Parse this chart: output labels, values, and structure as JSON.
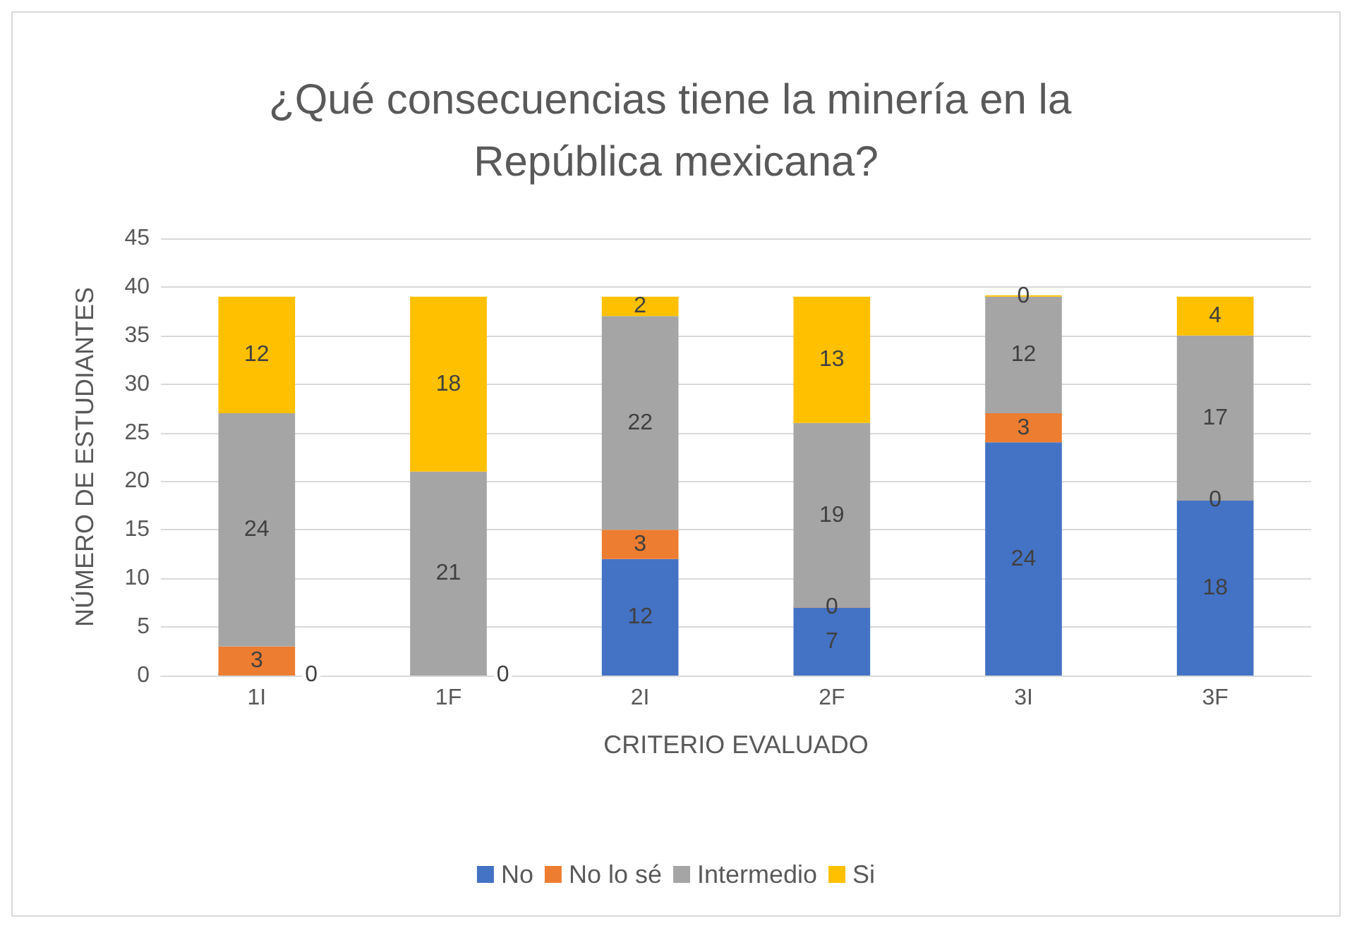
{
  "chart_data": {
    "type": "bar",
    "title": "¿Qué consecuencias tiene la minería en la República mexicana?",
    "xlabel": "CRITERIO EVALUADO",
    "ylabel": "NÚMERO DE ESTUDIANTES",
    "categories": [
      "1I",
      "1F",
      "2I",
      "2F",
      "3I",
      "3F"
    ],
    "series": [
      {
        "name": "No",
        "color": "#4472c4",
        "values": [
          0,
          0,
          12,
          7,
          24,
          18
        ],
        "value_labels": [
          "0",
          "0",
          "12",
          "7",
          "24",
          "18"
        ]
      },
      {
        "name": "No lo sé",
        "color": "#ed7d31",
        "values": [
          3,
          0,
          3,
          0,
          3,
          0
        ],
        "value_labels": [
          "3",
          null,
          "3",
          "0",
          "3",
          "0"
        ]
      },
      {
        "name": "Intermedio",
        "color": "#a5a5a5",
        "values": [
          24,
          21,
          22,
          19,
          12,
          17
        ],
        "value_labels": [
          "24",
          "21",
          "22",
          "19",
          "12",
          "17"
        ]
      },
      {
        "name": "Si",
        "color": "#ffc000",
        "values": [
          12,
          18,
          2,
          13,
          0,
          4
        ],
        "value_labels": [
          "12",
          "18",
          "2",
          "13",
          "0",
          "4"
        ]
      }
    ],
    "stacked": true,
    "ylim": [
      0,
      45
    ],
    "yticks": [
      0,
      5,
      10,
      15,
      20,
      25,
      30,
      35,
      40,
      45
    ],
    "grid": "y",
    "legend": "bottom"
  }
}
